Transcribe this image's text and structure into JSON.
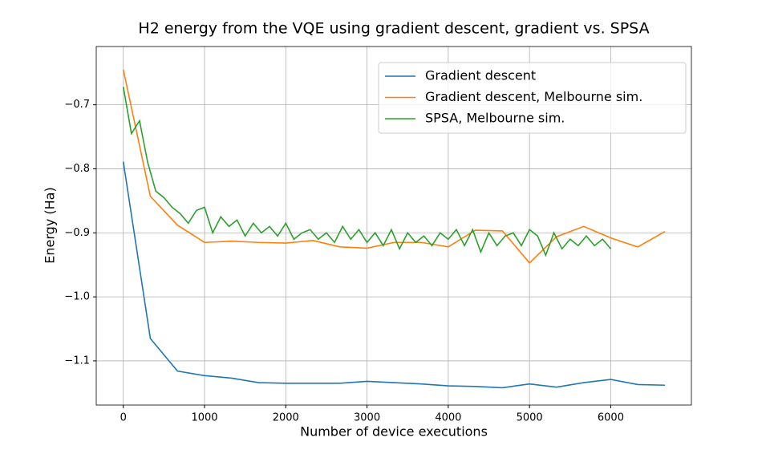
{
  "chart_data": {
    "type": "line",
    "title": "H2 energy from the VQE using gradient descent, gradient vs. SPSA",
    "xlabel": "Number of device executions",
    "ylabel": "Energy (Ha)",
    "xlim": [
      -333,
      6993
    ],
    "ylim": [
      -1.169,
      -0.609
    ],
    "xticks": [
      0,
      1000,
      2000,
      3000,
      4000,
      5000,
      6000
    ],
    "yticks": [
      {
        "value": -1.1,
        "label": "−1.1"
      },
      {
        "value": -1.0,
        "label": "−1.0"
      },
      {
        "value": -0.9,
        "label": "−0.9"
      },
      {
        "value": -0.8,
        "label": "−0.8"
      },
      {
        "value": -0.7,
        "label": "−0.7"
      }
    ],
    "grid": true,
    "legend": "upper right",
    "series": [
      {
        "name": "Gradient descent",
        "color": "#1f77b4",
        "x": [
          0,
          333,
          667,
          1000,
          1333,
          1667,
          2000,
          2333,
          2667,
          3000,
          3333,
          3667,
          4000,
          4333,
          4667,
          5000,
          5333,
          5667,
          6000,
          6333,
          6667
        ],
        "values": [
          -0.789,
          -1.065,
          -1.116,
          -1.123,
          -1.127,
          -1.134,
          -1.135,
          -1.135,
          -1.135,
          -1.132,
          -1.134,
          -1.136,
          -1.139,
          -1.14,
          -1.142,
          -1.136,
          -1.141,
          -1.134,
          -1.129,
          -1.137,
          -1.138
        ]
      },
      {
        "name": "Gradient descent, Melbourne sim.",
        "color": "#ff7f0e",
        "x": [
          0,
          333,
          667,
          1000,
          1333,
          1667,
          2000,
          2333,
          2667,
          3000,
          3333,
          3667,
          4000,
          4333,
          4667,
          5000,
          5333,
          5667,
          6000,
          6333,
          6667
        ],
        "values": [
          -0.645,
          -0.843,
          -0.888,
          -0.915,
          -0.913,
          -0.915,
          -0.916,
          -0.912,
          -0.922,
          -0.924,
          -0.915,
          -0.915,
          -0.922,
          -0.896,
          -0.897,
          -0.947,
          -0.906,
          -0.89,
          -0.908,
          -0.922,
          -0.898
        ]
      },
      {
        "name": "SPSA, Melbourne sim.",
        "color": "#2ca02c",
        "x": [
          0,
          100,
          200,
          300,
          400,
          500,
          600,
          700,
          800,
          900,
          1000,
          1100,
          1200,
          1300,
          1400,
          1500,
          1600,
          1700,
          1800,
          1900,
          2000,
          2100,
          2200,
          2300,
          2400,
          2500,
          2600,
          2700,
          2800,
          2900,
          3000,
          3100,
          3200,
          3300,
          3400,
          3500,
          3600,
          3700,
          3800,
          3900,
          4000,
          4100,
          4200,
          4300,
          4400,
          4500,
          4600,
          4700,
          4800,
          4900,
          5000,
          5100,
          5200,
          5300,
          5400,
          5500,
          5600,
          5700,
          5800,
          5900,
          6000
        ],
        "values": [
          -0.672,
          -0.745,
          -0.725,
          -0.79,
          -0.835,
          -0.845,
          -0.86,
          -0.87,
          -0.885,
          -0.865,
          -0.86,
          -0.9,
          -0.875,
          -0.89,
          -0.88,
          -0.905,
          -0.885,
          -0.9,
          -0.89,
          -0.905,
          -0.885,
          -0.91,
          -0.9,
          -0.895,
          -0.91,
          -0.9,
          -0.915,
          -0.89,
          -0.91,
          -0.895,
          -0.915,
          -0.9,
          -0.92,
          -0.895,
          -0.925,
          -0.9,
          -0.915,
          -0.905,
          -0.92,
          -0.9,
          -0.91,
          -0.895,
          -0.92,
          -0.895,
          -0.93,
          -0.9,
          -0.92,
          -0.905,
          -0.9,
          -0.92,
          -0.895,
          -0.905,
          -0.935,
          -0.9,
          -0.925,
          -0.91,
          -0.92,
          -0.905,
          -0.92,
          -0.91,
          -0.925
        ]
      }
    ]
  }
}
